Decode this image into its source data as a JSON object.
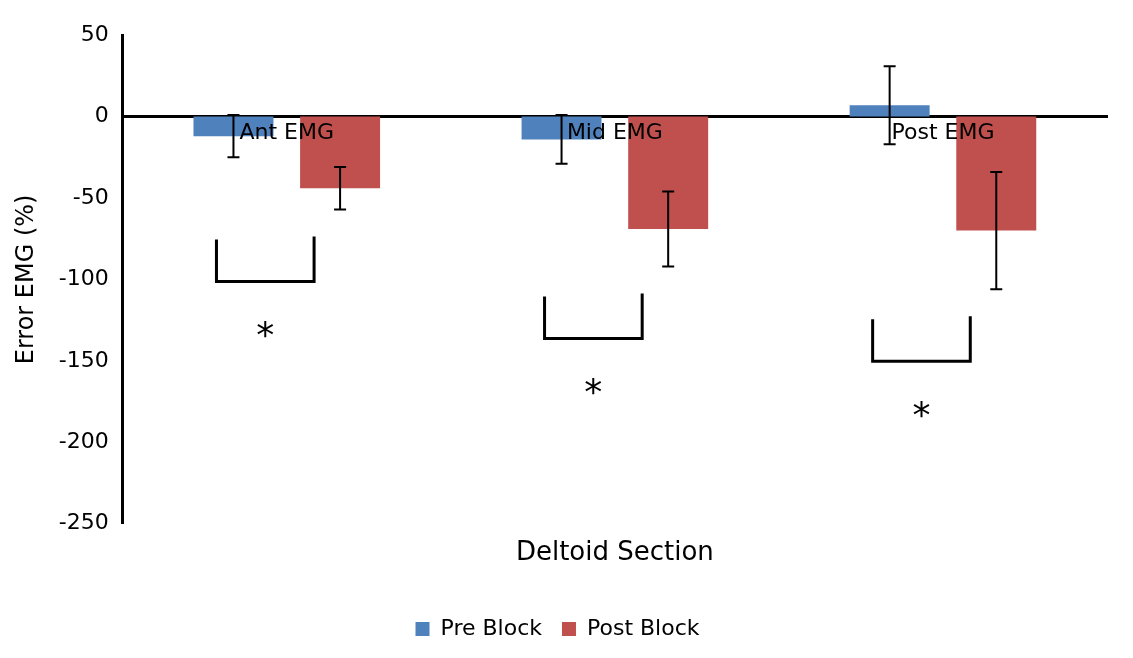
{
  "chart_data": {
    "type": "bar",
    "xlabel": "Deltoid Section",
    "ylabel": "Error EMG (%)",
    "categories": [
      "Ant EMG",
      "Mid EMG",
      "Post EMG"
    ],
    "series": [
      {
        "name": "Pre Block",
        "color": "#4f81bd",
        "values": [
          -12,
          -14,
          7
        ],
        "errors": [
          13,
          15,
          24
        ]
      },
      {
        "name": "Post Block",
        "color": "#c0504d",
        "values": [
          -44,
          -69,
          -70
        ],
        "errors": [
          13,
          23,
          36
        ]
      }
    ],
    "ylim": [
      -250,
      50
    ],
    "yticks": [
      -250,
      -200,
      -150,
      -100,
      -50,
      0,
      50
    ],
    "grid": false,
    "legend": "bottom",
    "annotations": [
      "*",
      "*",
      "*"
    ]
  }
}
